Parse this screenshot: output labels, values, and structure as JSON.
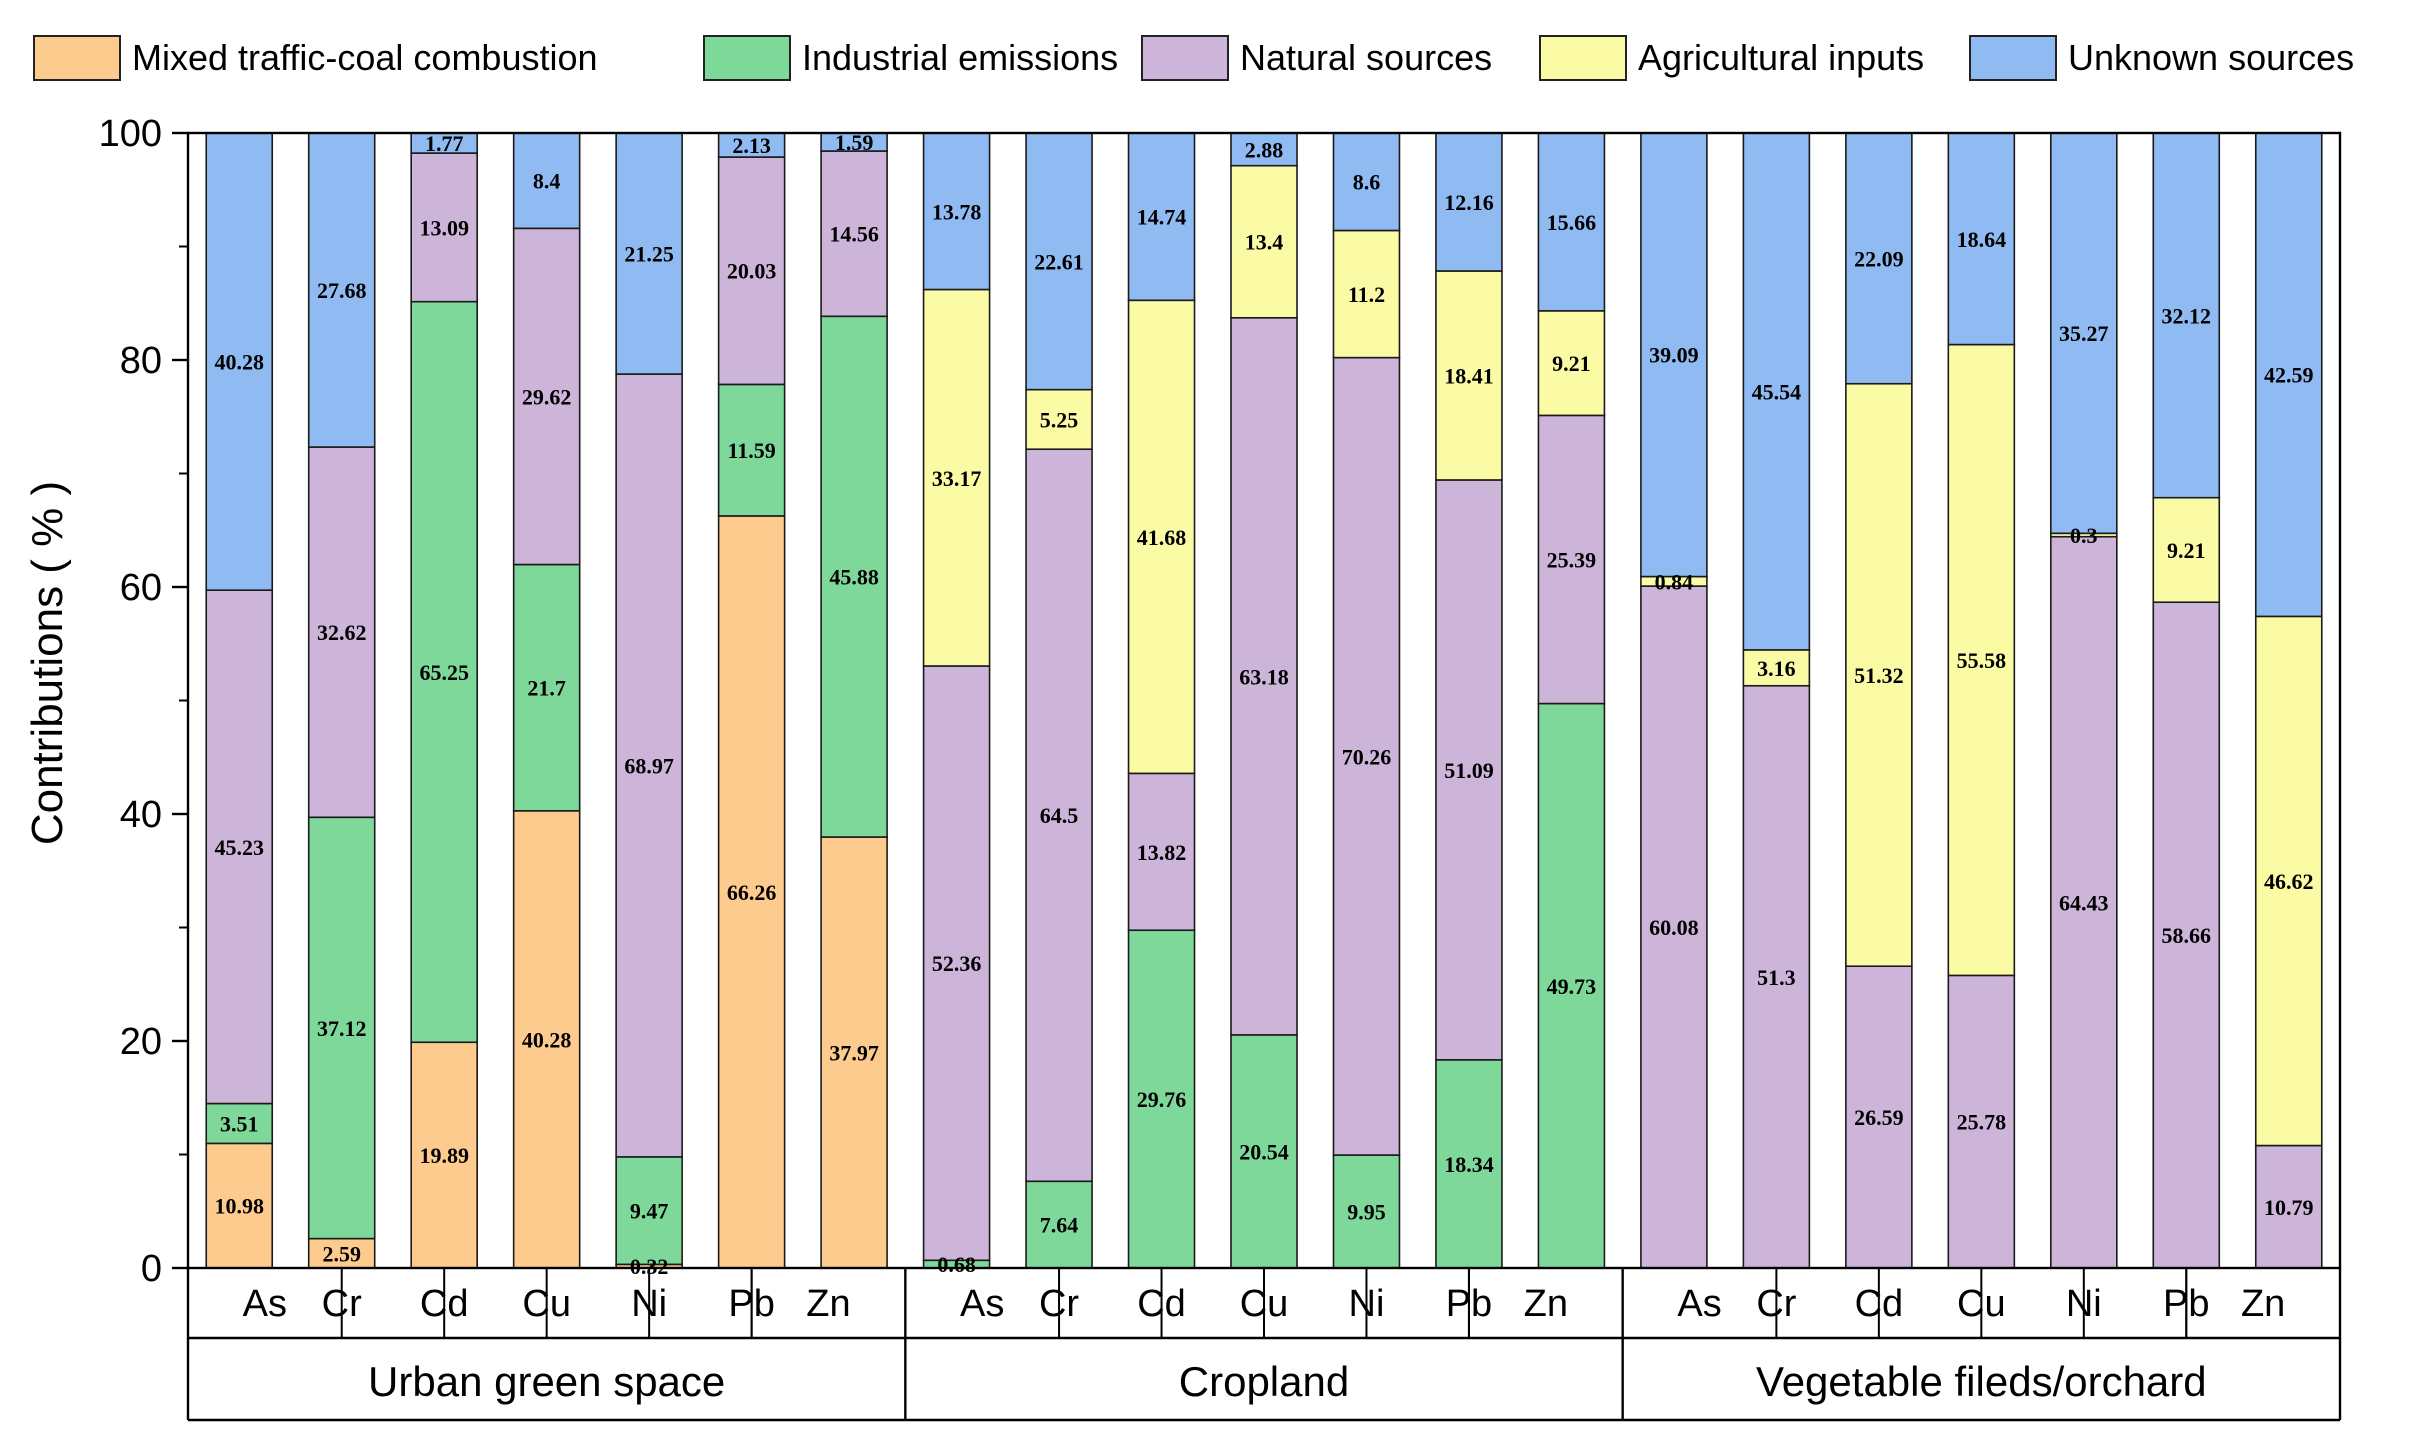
{
  "chart_data": {
    "type": "bar",
    "stacked": true,
    "ylabel": "Contributions ( % )",
    "xlabel": "",
    "ylim": [
      0,
      100
    ],
    "yticks": [
      0,
      20,
      40,
      60,
      80,
      100
    ],
    "legend_position": "top",
    "series": [
      {
        "name": "Mixed traffic-coal combustion",
        "color": "#FDCB8E"
      },
      {
        "name": "Industrial emissions",
        "color": "#7ED89A"
      },
      {
        "name": "Natural sources",
        "color": "#CDB4D9"
      },
      {
        "name": "Agricultural inputs",
        "color": "#FBFBA6"
      },
      {
        "name": "Unknown sources",
        "color": "#90BBF2"
      }
    ],
    "groups": [
      {
        "name": "Urban green space",
        "categories": [
          "As",
          "Cr",
          "Cd",
          "Cu",
          "Ni",
          "Pb",
          "Zn"
        ],
        "values": [
          [
            10.98,
            3.51,
            45.23,
            0,
            40.28
          ],
          [
            2.59,
            37.12,
            32.62,
            0,
            27.68
          ],
          [
            19.89,
            65.25,
            13.09,
            0,
            1.77
          ],
          [
            40.28,
            21.7,
            29.62,
            0,
            8.4
          ],
          [
            0.32,
            9.47,
            68.97,
            0,
            21.25
          ],
          [
            66.26,
            11.59,
            20.03,
            0,
            2.13
          ],
          [
            37.97,
            45.88,
            14.56,
            0,
            1.59
          ]
        ]
      },
      {
        "name": "Cropland",
        "categories": [
          "As",
          "Cr",
          "Cd",
          "Cu",
          "Ni",
          "Pb",
          "Zn"
        ],
        "values": [
          [
            0,
            0.68,
            52.36,
            33.17,
            13.78
          ],
          [
            0,
            7.64,
            64.5,
            5.25,
            22.61
          ],
          [
            0,
            29.76,
            13.82,
            41.68,
            14.74
          ],
          [
            0,
            20.54,
            63.18,
            13.4,
            2.88
          ],
          [
            0,
            9.95,
            70.26,
            11.2,
            8.6
          ],
          [
            0,
            18.34,
            51.09,
            18.41,
            12.16
          ],
          [
            0,
            49.73,
            25.39,
            9.21,
            15.66
          ]
        ]
      },
      {
        "name": "Vegetable fileds/orchard",
        "categories": [
          "As",
          "Cr",
          "Cd",
          "Cu",
          "Ni",
          "Pb",
          "Zn"
        ],
        "values": [
          [
            0,
            0,
            60.08,
            0.84,
            39.09
          ],
          [
            0,
            0,
            51.3,
            3.16,
            45.54
          ],
          [
            0,
            0,
            26.59,
            51.32,
            22.09
          ],
          [
            0,
            0,
            25.78,
            55.58,
            18.64
          ],
          [
            0,
            0,
            64.43,
            0.3,
            35.27
          ],
          [
            0,
            0,
            58.66,
            9.21,
            32.12
          ],
          [
            0,
            0,
            10.79,
            46.62,
            42.59
          ]
        ]
      }
    ]
  }
}
